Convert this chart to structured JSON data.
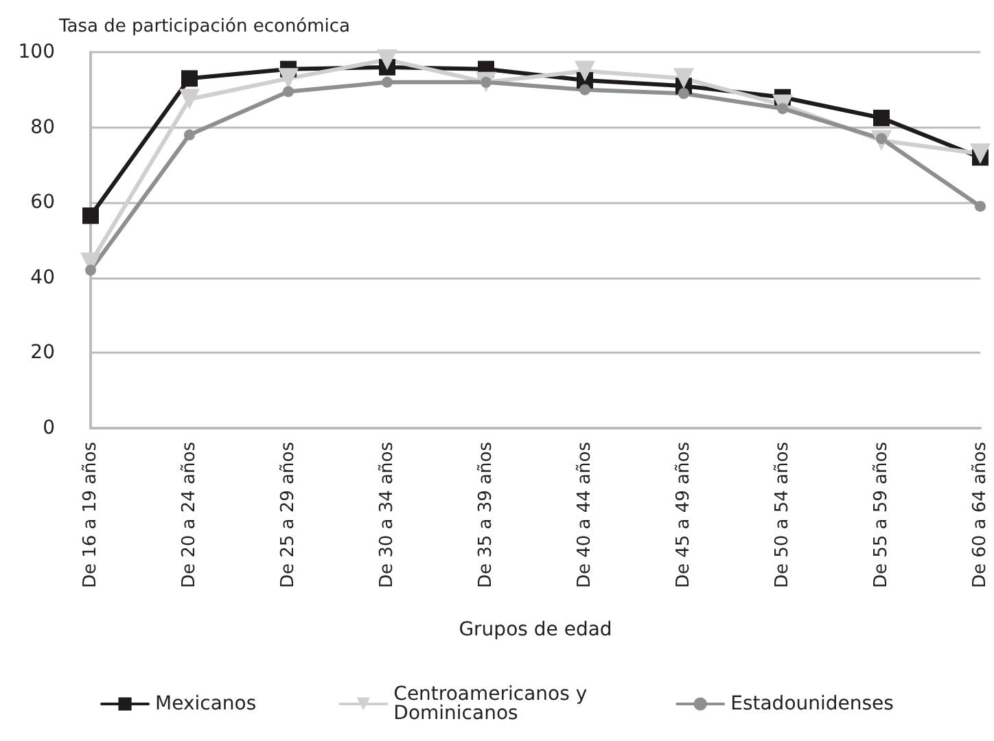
{
  "chart_data": {
    "type": "line",
    "ylabel": "Tasa de participación económica",
    "xlabel": "Grupos de edad",
    "categories": [
      "De 16 a 19 años",
      "De 20 a 24 años",
      "De 25 a 29 años",
      "De 30 a 34 años",
      "De 35 a 39 años",
      "De 40 a 44 años",
      "De 45 a 49 años",
      "De 50 a 54 años",
      "De 55 a 59 años",
      "De 60 a 64 años"
    ],
    "series": [
      {
        "name": "Mexicanos",
        "color": "#1f1a1c",
        "marker": "square",
        "values": [
          56.5,
          93,
          95.5,
          96,
          95.5,
          92.5,
          91,
          88,
          82.5,
          72
        ]
      },
      {
        "name": "Centroamericanos y Dominicanos",
        "color": "#cfcfcf",
        "marker": "triangle",
        "values": [
          44,
          87.5,
          93,
          98,
          92,
          95,
          93,
          86,
          76.5,
          73
        ]
      },
      {
        "name": "Estadounidenses",
        "color": "#8f8f8f",
        "marker": "circle",
        "values": [
          42,
          78,
          89.5,
          92,
          92,
          90,
          89,
          85,
          77,
          59
        ]
      }
    ],
    "ylim": [
      0,
      100
    ],
    "yticks": [
      0,
      20,
      40,
      60,
      80,
      100
    ],
    "grid": "y",
    "legend": "bottom",
    "line_style": "solid"
  }
}
